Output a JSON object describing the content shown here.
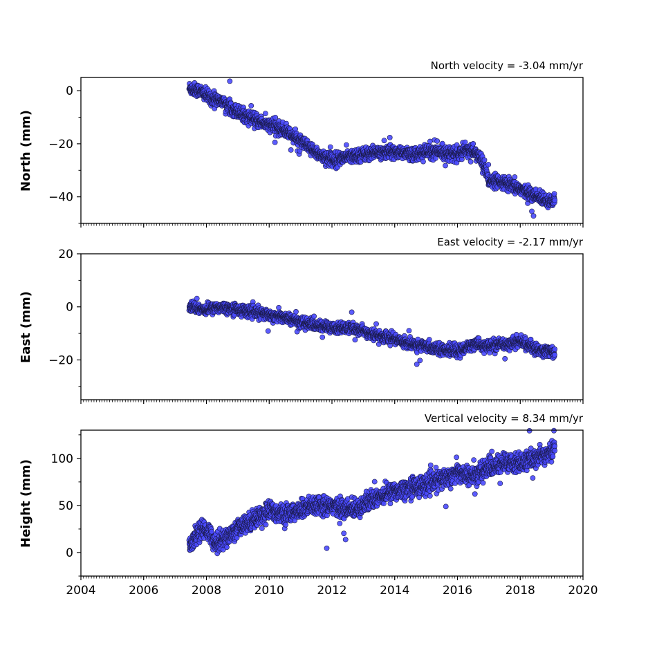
{
  "figure": {
    "background": "#ffffff",
    "marker_fill": "#4a4aff",
    "marker_edge": "#1a1a4a"
  },
  "chart_data": [
    {
      "type": "scatter",
      "title": "North velocity = -3.04 mm/yr",
      "xlabel": "",
      "ylabel": "North (mm)",
      "xlim": [
        2004,
        2020
      ],
      "ylim": [
        -50,
        5
      ],
      "y_ticks": [
        0,
        -20,
        -40
      ],
      "x_ticks": [
        2004,
        2006,
        2008,
        2010,
        2012,
        2014,
        2016,
        2018,
        2020
      ],
      "x_tick_labels_shown": false,
      "velocity": -3.04,
      "time_range": [
        2007.45,
        2019.1
      ],
      "noise": 1.2,
      "series": [
        {
          "x": [
            2007.45,
            2007.8,
            2008.0,
            2008.2,
            2008.5,
            2009.0,
            2009.5,
            2010.0,
            2010.5,
            2011.0,
            2011.3,
            2011.6,
            2012.0,
            2012.5,
            2013.0,
            2013.5,
            2014.0,
            2014.5,
            2015.0,
            2015.5,
            2016.0,
            2016.4,
            2016.7,
            2016.85,
            2017.0,
            2017.5,
            2018.0,
            2018.5,
            2019.1
          ],
          "y": [
            1,
            0,
            -2,
            -3,
            -4,
            -8,
            -11,
            -13,
            -15,
            -19,
            -22,
            -24,
            -26,
            -25,
            -24,
            -23,
            -23,
            -24,
            -23,
            -23,
            -24,
            -22,
            -25,
            -28,
            -34,
            -35,
            -37,
            -40,
            -42
          ]
        }
      ]
    },
    {
      "type": "scatter",
      "title": "East velocity = -2.17 mm/yr",
      "xlabel": "",
      "ylabel": "East (mm)",
      "xlim": [
        2004,
        2020
      ],
      "ylim": [
        -35,
        20
      ],
      "y_ticks": [
        20,
        0,
        -20
      ],
      "x_ticks": [
        2004,
        2006,
        2008,
        2010,
        2012,
        2014,
        2016,
        2018,
        2020
      ],
      "x_tick_labels_shown": false,
      "velocity": -2.17,
      "time_range": [
        2007.45,
        2019.1
      ],
      "noise": 1.0,
      "series": [
        {
          "x": [
            2007.45,
            2008.0,
            2008.5,
            2009.0,
            2009.5,
            2010.0,
            2010.5,
            2011.0,
            2011.5,
            2012.0,
            2012.5,
            2013.0,
            2013.5,
            2014.0,
            2014.5,
            2015.0,
            2015.5,
            2016.0,
            2016.5,
            2017.0,
            2017.5,
            2018.0,
            2018.5,
            2019.1
          ],
          "y": [
            0,
            -1,
            0,
            -1,
            -2,
            -3,
            -4,
            -6,
            -7,
            -8,
            -8,
            -9,
            -11,
            -12,
            -14,
            -15,
            -16,
            -17,
            -14,
            -15,
            -14,
            -13,
            -16,
            -17
          ]
        }
      ]
    },
    {
      "type": "scatter",
      "title": "Vertical velocity = 8.34 mm/yr",
      "xlabel": "",
      "ylabel": "Height (mm)",
      "xlim": [
        2004,
        2020
      ],
      "ylim": [
        -25,
        130
      ],
      "y_ticks": [
        100,
        50,
        0
      ],
      "x_ticks": [
        2004,
        2006,
        2008,
        2010,
        2012,
        2014,
        2016,
        2018,
        2020
      ],
      "x_tick_labels": [
        "2004",
        "2006",
        "2008",
        "2010",
        "2012",
        "2014",
        "2016",
        "2018",
        "2020"
      ],
      "x_tick_labels_shown": true,
      "velocity": 8.34,
      "time_range": [
        2007.45,
        2019.1
      ],
      "noise": 5,
      "series": [
        {
          "x": [
            2007.45,
            2007.7,
            2008.0,
            2008.3,
            2008.6,
            2009.0,
            2009.5,
            2010.0,
            2010.5,
            2011.0,
            2011.5,
            2012.0,
            2012.5,
            2013.0,
            2013.5,
            2014.0,
            2014.5,
            2015.0,
            2015.5,
            2016.0,
            2016.5,
            2017.0,
            2017.5,
            2018.0,
            2018.5,
            2019.1
          ],
          "y": [
            5,
            20,
            25,
            10,
            15,
            25,
            35,
            45,
            40,
            45,
            50,
            50,
            45,
            50,
            60,
            65,
            70,
            72,
            78,
            85,
            80,
            90,
            95,
            95,
            100,
            110
          ]
        }
      ]
    }
  ]
}
